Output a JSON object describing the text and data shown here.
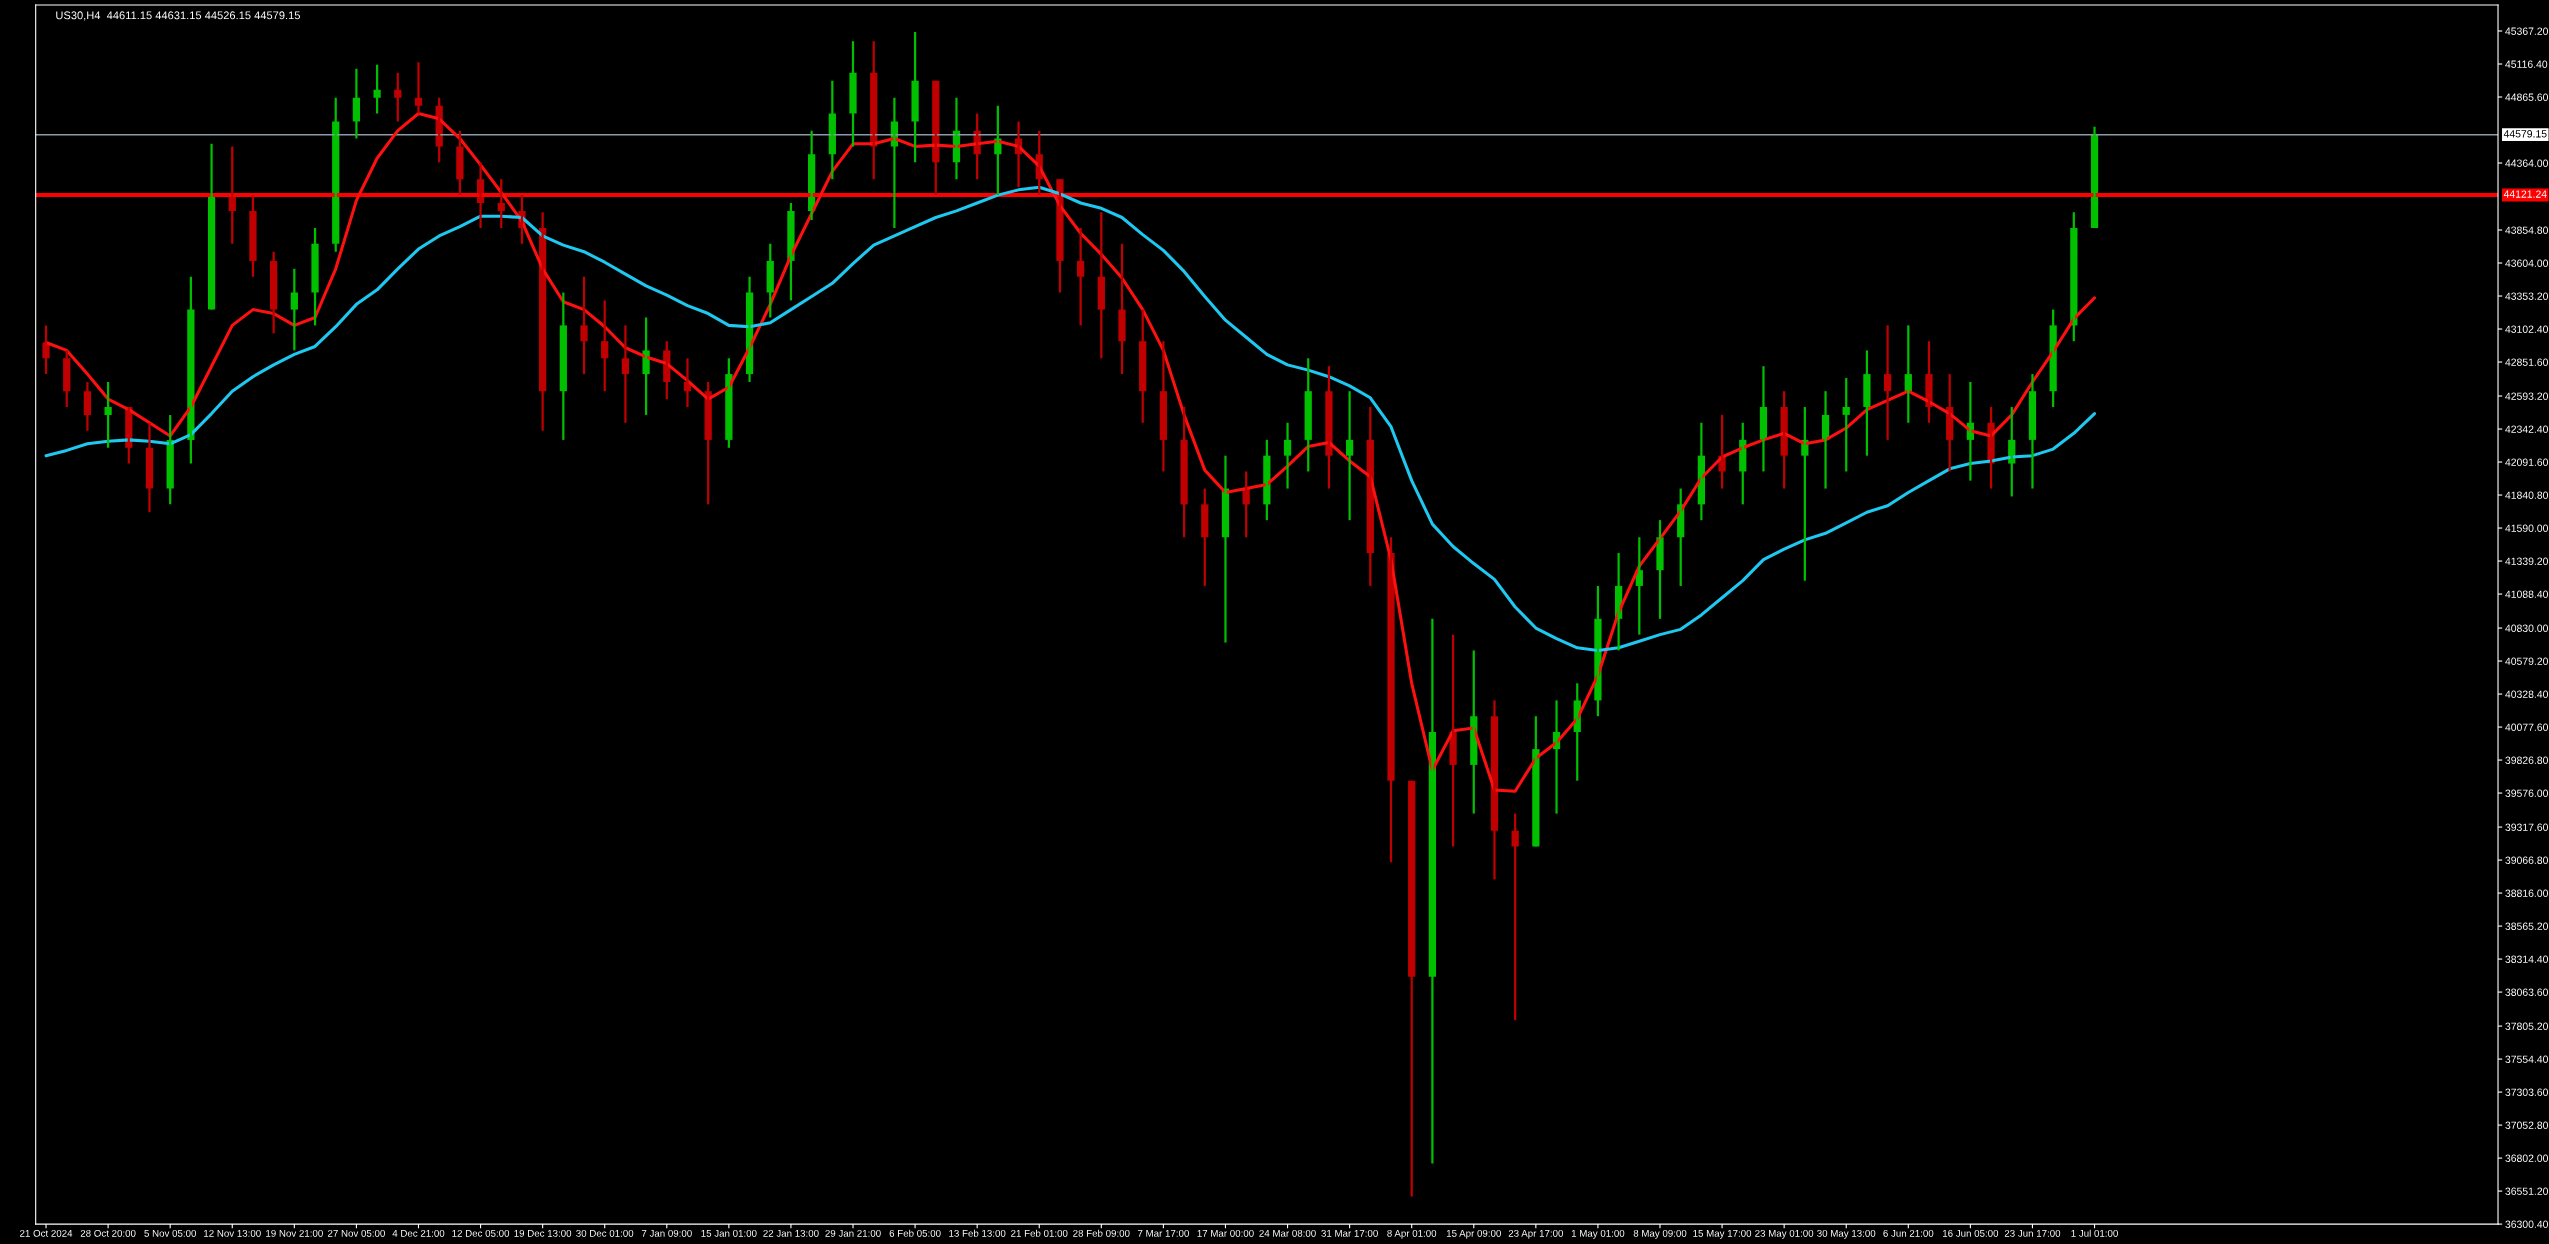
{
  "chart_data": {
    "type": "candlestick",
    "title": "US30,H4  44611.15 44631.15 44526.15 44579.15",
    "categories": [
      "21 Oct 2024",
      null,
      null,
      "28 Oct 20:00",
      null,
      null,
      "5 Nov 05:00",
      null,
      null,
      "12 Nov 13:00",
      null,
      null,
      "19 Nov 21:00",
      null,
      null,
      "27 Nov 05:00",
      null,
      null,
      "4 Dec 21:00",
      null,
      null,
      "12 Dec 05:00",
      null,
      null,
      "19 Dec 13:00",
      null,
      null,
      "30 Dec 01:00",
      null,
      null,
      "7 Jan 09:00",
      null,
      null,
      "15 Jan 01:00",
      null,
      null,
      "22 Jan 13:00",
      null,
      null,
      "29 Jan 21:00",
      null,
      null,
      "6 Feb 05:00",
      null,
      null,
      "13 Feb 13:00",
      null,
      null,
      "21 Feb 01:00",
      null,
      null,
      "28 Feb 09:00",
      null,
      null,
      "7 Mar 17:00",
      null,
      null,
      "17 Mar 00:00",
      null,
      null,
      "24 Mar 08:00",
      null,
      null,
      "31 Mar 17:00",
      null,
      null,
      "8 Apr 01:00",
      null,
      null,
      "15 Apr 09:00",
      null,
      null,
      "23 Apr 17:00",
      null,
      null,
      "1 May 01:00",
      null,
      null,
      "8 May 09:00",
      null,
      null,
      "15 May 17:00",
      null,
      null,
      "23 May 01:00",
      null,
      null,
      "30 May 13:00",
      null,
      null,
      "6 Jun 21:00",
      null,
      null,
      "16 Jun 05:00",
      null,
      null,
      "23 Jun 17:00",
      null,
      null,
      "1 Jul 01:00",
      null,
      null,
      null,
      null,
      null,
      null,
      null,
      null,
      null,
      null,
      null,
      null,
      null,
      null,
      null,
      null,
      null,
      null,
      null
    ],
    "ohlc": [
      [
        43000,
        43130,
        42760,
        42880
      ],
      [
        42880,
        42940,
        42510,
        42630
      ],
      [
        42630,
        42700,
        42330,
        42450
      ],
      [
        42450,
        42700,
        42200,
        42510
      ],
      [
        42510,
        42510,
        42080,
        42200
      ],
      [
        42200,
        42390,
        41710,
        41890
      ],
      [
        41890,
        42450,
        41770,
        42260
      ],
      [
        42260,
        43500,
        42080,
        43250
      ],
      [
        43250,
        44510,
        43250,
        44120
      ],
      [
        44120,
        44490,
        43750,
        44000
      ],
      [
        44000,
        44120,
        43500,
        43620
      ],
      [
        43620,
        43690,
        43070,
        43250
      ],
      [
        43250,
        43560,
        42940,
        43380
      ],
      [
        43380,
        43870,
        43130,
        43750
      ],
      [
        43750,
        44860,
        43690,
        44680
      ],
      [
        44680,
        45080,
        44550,
        44860
      ],
      [
        44860,
        45110,
        44740,
        44920
      ],
      [
        44920,
        45050,
        44680,
        44860
      ],
      [
        44860,
        45130,
        44740,
        44800
      ],
      [
        44800,
        44860,
        44370,
        44490
      ],
      [
        44490,
        44610,
        44120,
        44240
      ],
      [
        44240,
        44370,
        43870,
        44060
      ],
      [
        44060,
        44240,
        43870,
        44000
      ],
      [
        44000,
        44120,
        43750,
        43870
      ],
      [
        43870,
        43990,
        42330,
        42630
      ],
      [
        42630,
        43380,
        42260,
        43130
      ],
      [
        43130,
        43500,
        42760,
        43010
      ],
      [
        43010,
        43320,
        42630,
        42880
      ],
      [
        42880,
        43130,
        42390,
        42760
      ],
      [
        42760,
        43190,
        42450,
        42940
      ],
      [
        42940,
        43010,
        42570,
        42700
      ],
      [
        42700,
        42880,
        42510,
        42630
      ],
      [
        42630,
        42700,
        41770,
        42260
      ],
      [
        42260,
        42880,
        42200,
        42760
      ],
      [
        42760,
        43500,
        42700,
        43380
      ],
      [
        43380,
        43750,
        43190,
        43620
      ],
      [
        43620,
        44060,
        43320,
        44000
      ],
      [
        44000,
        44610,
        43930,
        44430
      ],
      [
        44430,
        44990,
        44240,
        44740
      ],
      [
        44740,
        45290,
        44490,
        45050
      ],
      [
        45050,
        45290,
        44240,
        44490
      ],
      [
        44490,
        44860,
        43870,
        44680
      ],
      [
        44680,
        45360,
        44370,
        44990
      ],
      [
        44990,
        44990,
        44120,
        44370
      ],
      [
        44370,
        44860,
        44240,
        44610
      ],
      [
        44610,
        44740,
        44240,
        44430
      ],
      [
        44430,
        44800,
        44120,
        44550
      ],
      [
        44550,
        44680,
        44180,
        44430
      ],
      [
        44430,
        44610,
        44120,
        44240
      ],
      [
        44240,
        44240,
        43380,
        43620
      ],
      [
        43620,
        43870,
        43130,
        43500
      ],
      [
        43500,
        43990,
        42880,
        43250
      ],
      [
        43250,
        43750,
        42760,
        43010
      ],
      [
        43010,
        43250,
        42390,
        42630
      ],
      [
        42630,
        43010,
        42020,
        42260
      ],
      [
        42260,
        42510,
        41520,
        41770
      ],
      [
        41770,
        41890,
        41150,
        41520
      ],
      [
        41520,
        42140,
        40720,
        41890
      ],
      [
        41890,
        42020,
        41520,
        41770
      ],
      [
        41770,
        42260,
        41650,
        42140
      ],
      [
        42140,
        42390,
        41890,
        42260
      ],
      [
        42260,
        42880,
        42020,
        42630
      ],
      [
        42630,
        42820,
        41890,
        42140
      ],
      [
        42140,
        42630,
        41650,
        42260
      ],
      [
        42260,
        42510,
        41150,
        41400
      ],
      [
        41400,
        41520,
        39050,
        39670
      ],
      [
        39670,
        39670,
        36510,
        38180
      ],
      [
        38180,
        40900,
        36760,
        40040
      ],
      [
        40040,
        40780,
        39170,
        39790
      ],
      [
        39790,
        40660,
        39420,
        40160
      ],
      [
        40160,
        40280,
        38920,
        39290
      ],
      [
        39290,
        39420,
        37850,
        39170
      ],
      [
        39170,
        40160,
        39170,
        39910
      ],
      [
        39910,
        40280,
        39420,
        40040
      ],
      [
        40040,
        40410,
        39670,
        40280
      ],
      [
        40280,
        41150,
        40160,
        40900
      ],
      [
        40900,
        41400,
        40660,
        41150
      ],
      [
        41150,
        41520,
        40780,
        41270
      ],
      [
        41270,
        41650,
        40900,
        41520
      ],
      [
        41520,
        41890,
        41150,
        41770
      ],
      [
        41770,
        42390,
        41650,
        42140
      ],
      [
        42140,
        42450,
        41890,
        42020
      ],
      [
        42020,
        42390,
        41770,
        42260
      ],
      [
        42260,
        42820,
        42020,
        42510
      ],
      [
        42510,
        42630,
        41890,
        42140
      ],
      [
        42140,
        42510,
        41190,
        42260
      ],
      [
        42260,
        42630,
        41890,
        42450
      ],
      [
        42450,
        42730,
        42020,
        42510
      ],
      [
        42510,
        42940,
        42140,
        42760
      ],
      [
        42760,
        43130,
        42260,
        42630
      ],
      [
        42630,
        43130,
        42390,
        42760
      ],
      [
        42760,
        43010,
        42390,
        42510
      ],
      [
        42510,
        42760,
        42020,
        42260
      ],
      [
        42260,
        42700,
        41950,
        42390
      ],
      [
        42390,
        42510,
        41890,
        42080
      ],
      [
        42080,
        42510,
        41830,
        42260
      ],
      [
        42260,
        42760,
        41890,
        42630
      ],
      [
        42630,
        43250,
        42510,
        43130
      ],
      [
        43130,
        43990,
        43010,
        43870
      ],
      [
        43870,
        44640,
        43870,
        44580
      ],
      null,
      null,
      null,
      null,
      null,
      null,
      null,
      null,
      null,
      null,
      null,
      null,
      null,
      null,
      null,
      null,
      null,
      null,
      null
    ],
    "colors": [
      "#c00000",
      "#c00000",
      "#c00000",
      "#00c000",
      "#c00000",
      "#c00000",
      "#00c000",
      "#00c000",
      "#00c000",
      "#c00000",
      "#c00000",
      "#c00000",
      "#00c000",
      "#00c000",
      "#00c000",
      "#00c000",
      "#00c000",
      "#c00000",
      "#c00000",
      "#c00000",
      "#c00000",
      "#c00000",
      "#c00000",
      "#c00000",
      "#c00000",
      "#00c000",
      "#c00000",
      "#c00000",
      "#c00000",
      "#00c000",
      "#c00000",
      "#c00000",
      "#c00000",
      "#00c000",
      "#00c000",
      "#00c000",
      "#00c000",
      "#00c000",
      "#00c000",
      "#00c000",
      "#c00000",
      "#00c000",
      "#00c000",
      "#c00000",
      "#00c000",
      "#c00000",
      "#00c000",
      "#c00000",
      "#c00000",
      "#c00000",
      "#c00000",
      "#c00000",
      "#c00000",
      "#c00000",
      "#c00000",
      "#c00000",
      "#c00000",
      "#00c000",
      "#c00000",
      "#00c000",
      "#00c000",
      "#00c000",
      "#c00000",
      "#00c000",
      "#c00000",
      "#c00000",
      "#c00000",
      "#00c000",
      "#c00000",
      "#00c000",
      "#c00000",
      "#c00000",
      "#00c000",
      "#00c000",
      "#00c000",
      "#00c000",
      "#00c000",
      "#00c000",
      "#00c000",
      "#00c000",
      "#00c000",
      "#c00000",
      "#00c000",
      "#00c000",
      "#c00000",
      "#00c000",
      "#00c000",
      "#00c000",
      "#00c000",
      "#c00000",
      "#00c000",
      "#c00000",
      "#c00000",
      "#00c000",
      "#c00000",
      "#00c000",
      "#00c000",
      "#00c000",
      "#00c000",
      "#00c000",
      null,
      null,
      null,
      null,
      null,
      null,
      null,
      null,
      null,
      null,
      null,
      null,
      null,
      null,
      null,
      null,
      null,
      null,
      null
    ],
    "series": [
      {
        "type": "line",
        "color": "#ff1010",
        "values": [
          43000,
          42940,
          42760,
          42570,
          42490,
          42390,
          42290,
          42510,
          42820,
          43130,
          43250,
          43220,
          43130,
          43190,
          43560,
          44080,
          44400,
          44610,
          44740,
          44700,
          44550,
          44350,
          44140,
          43920,
          43560,
          43310,
          43250,
          43120,
          42960,
          42890,
          42840,
          42710,
          42570,
          42660,
          42960,
          43290,
          43660,
          43980,
          44300,
          44510,
          44510,
          44550,
          44490,
          44500,
          44490,
          44510,
          44530,
          44490,
          44340,
          44040,
          43830,
          43670,
          43490,
          43250,
          42940,
          42450,
          42030,
          41860,
          41890,
          41920,
          42060,
          42210,
          42240,
          42100,
          41980,
          41350,
          40410,
          39750,
          40050,
          40070,
          39600,
          39590,
          39840,
          39960,
          40140,
          40470,
          40950,
          41300,
          41510,
          41720,
          41970,
          42130,
          42200,
          42260,
          42310,
          42230,
          42260,
          42350,
          42490,
          42560,
          42630,
          42550,
          42460,
          42330,
          42290,
          42450,
          42700,
          42930,
          43180,
          43340,
          null,
          null,
          null,
          null,
          null,
          null,
          null,
          null,
          null,
          null,
          null,
          null,
          null,
          null,
          null,
          null,
          null,
          null,
          null
        ]
      },
      {
        "type": "line",
        "color": "#1ec8f0",
        "values": [
          42140,
          42180,
          42230,
          42250,
          42260,
          42250,
          42230,
          42300,
          42460,
          42630,
          42740,
          42830,
          42910,
          42970,
          43120,
          43290,
          43400,
          43560,
          43710,
          43810,
          43880,
          43960,
          43960,
          43950,
          43810,
          43740,
          43690,
          43610,
          43520,
          43430,
          43360,
          43280,
          43220,
          43130,
          43120,
          43150,
          43250,
          43350,
          43450,
          43600,
          43740,
          43810,
          43880,
          43950,
          44000,
          44060,
          44120,
          44160,
          44180,
          44130,
          44060,
          44020,
          43950,
          43820,
          43700,
          43540,
          43350,
          43170,
          43040,
          42910,
          42830,
          42790,
          42740,
          42670,
          42580,
          42360,
          41950,
          41620,
          41450,
          41320,
          41200,
          40990,
          40830,
          40750,
          40680,
          40660,
          40680,
          40730,
          40780,
          40820,
          40930,
          41060,
          41190,
          41350,
          41430,
          41500,
          41550,
          41630,
          41710,
          41760,
          41860,
          41950,
          42040,
          42080,
          42100,
          42130,
          42140,
          42190,
          42310,
          42460,
          null,
          null,
          null,
          null,
          null,
          null,
          null,
          null,
          null,
          null,
          null,
          null,
          null,
          null,
          null,
          null,
          null,
          null,
          null
        ]
      }
    ],
    "ylim": [
      36300.4,
      45565
    ],
    "yticks": [
      {
        "value": 45367.2,
        "label": "45367.20"
      },
      {
        "value": 45116.4,
        "label": "45116.40"
      },
      {
        "value": 44865.6,
        "label": "44865.60"
      },
      {
        "value": 44364.0,
        "label": "44364.00"
      },
      {
        "value": 43854.8,
        "label": "43854.80"
      },
      {
        "value": 43604.0,
        "label": "43604.00"
      },
      {
        "value": 43353.2,
        "label": "43353.20"
      },
      {
        "value": 43102.4,
        "label": "43102.40"
      },
      {
        "value": 42851.6,
        "label": "42851.60"
      },
      {
        "value": 42593.2,
        "label": "42593.20"
      },
      {
        "value": 42342.4,
        "label": "42342.40"
      },
      {
        "value": 42091.6,
        "label": "42091.60"
      },
      {
        "value": 41840.8,
        "label": "41840.80"
      },
      {
        "value": 41590.0,
        "label": "41590.00"
      },
      {
        "value": 41339.2,
        "label": "41339.20"
      },
      {
        "value": 41088.4,
        "label": "41088.40"
      },
      {
        "value": 40830.0,
        "label": "40830.00"
      },
      {
        "value": 40579.2,
        "label": "40579.20"
      },
      {
        "value": 40328.4,
        "label": "40328.40"
      },
      {
        "value": 40077.6,
        "label": "40077.60"
      },
      {
        "value": 39826.8,
        "label": "39826.80"
      },
      {
        "value": 39576.0,
        "label": "39576.00"
      },
      {
        "value": 39317.6,
        "label": "39317.60"
      },
      {
        "value": 39066.8,
        "label": "39066.80"
      },
      {
        "value": 38816.0,
        "label": "38816.00"
      },
      {
        "value": 38565.2,
        "label": "38565.20"
      },
      {
        "value": 38314.4,
        "label": "38314.40"
      },
      {
        "value": 38063.6,
        "label": "38063.60"
      },
      {
        "value": 37805.2,
        "label": "37805.20"
      },
      {
        "value": 37554.4,
        "label": "37554.40"
      },
      {
        "value": 37303.6,
        "label": "37303.60"
      },
      {
        "value": 37052.8,
        "label": "37052.80"
      },
      {
        "value": 36802.0,
        "label": "36802.00"
      },
      {
        "value": 36551.2,
        "label": "36551.20"
      },
      {
        "value": 36300.4,
        "label": "36300.40"
      }
    ],
    "ref_lines": [
      {
        "axis": "y",
        "value": 44579.15,
        "label": "44579.15",
        "color": "#8c9aa8"
      },
      {
        "axis": "y",
        "value": 44121.24,
        "label": "44121.24",
        "color": "#ff0000"
      }
    ],
    "grid": false
  }
}
